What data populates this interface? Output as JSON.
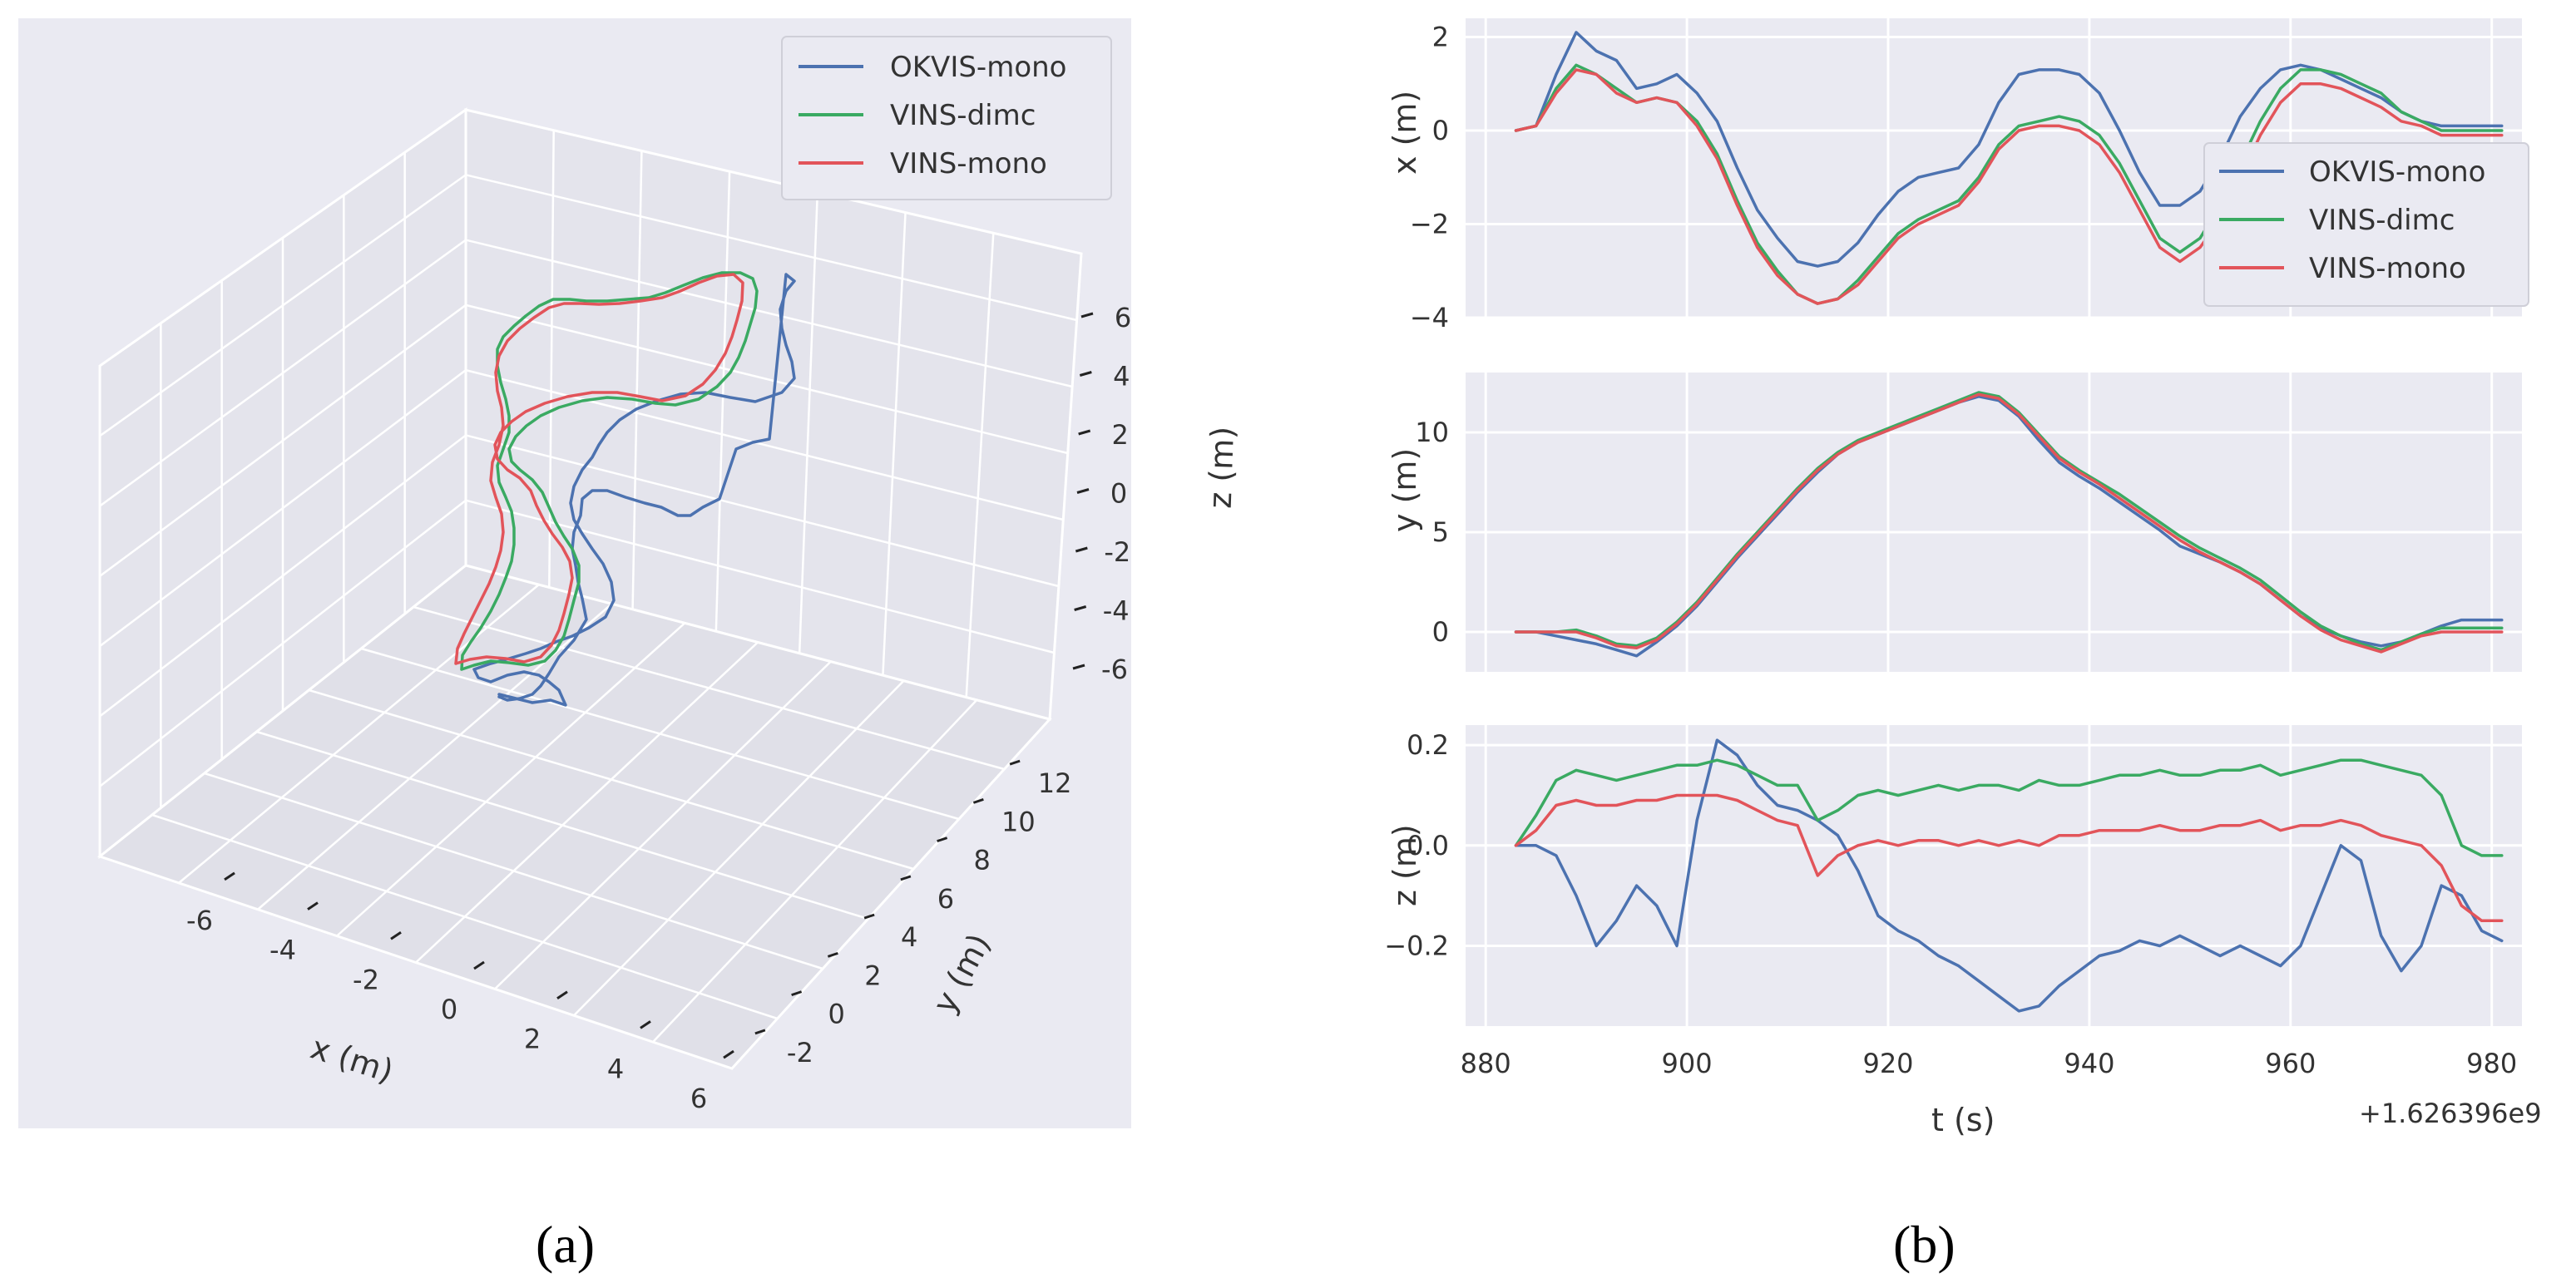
{
  "colors": {
    "okvis": "#4c72b0",
    "vins_dimc": "#3aaa62",
    "vins_mono": "#e2545a",
    "panel_bg": "#eaeaf2",
    "grid": "#ffffff"
  },
  "legend": [
    "OKVIS-mono",
    "VINS-dimc",
    "VINS-mono"
  ],
  "panel_labels": {
    "a": "(a)",
    "b": "(b)"
  },
  "chart_data": [
    {
      "type": "line",
      "subtype": "3d-trajectory",
      "axes": {
        "x": {
          "label": "x (m)",
          "ticks": [
            "-6",
            "-4",
            "-2",
            "0",
            "2",
            "4",
            "6"
          ]
        },
        "y": {
          "label": "y (m)",
          "ticks": [
            "-2",
            "0",
            "2",
            "4",
            "6",
            "8",
            "10",
            "12"
          ]
        },
        "z": {
          "label": "z (m)",
          "ticks": [
            "-6",
            "-4",
            "-2",
            "0",
            "2",
            "4",
            "6"
          ]
        }
      },
      "legend_position": "top-right",
      "grid": true
    },
    {
      "type": "line",
      "subtype": "stacked-timeseries",
      "x_offset_text": "+1.626396e9",
      "xlabel": "t (s)",
      "xlim": [
        878,
        983
      ],
      "xticks": [
        "880",
        "900",
        "920",
        "940",
        "960",
        "980"
      ],
      "legend_position": "right (x panel)",
      "grid": true,
      "panels": [
        {
          "ylabel": "x (m)",
          "ylim": [
            -4,
            2.4
          ],
          "yticks": [
            "2",
            "0",
            "−2",
            "−4"
          ],
          "ytick_values": [
            2,
            0,
            -2,
            -4
          ]
        },
        {
          "ylabel": "y (m)",
          "ylim": [
            -2,
            13
          ],
          "yticks": [
            "10",
            "5",
            "0"
          ],
          "ytick_values": [
            10,
            5,
            0
          ]
        },
        {
          "ylabel": "z (m)",
          "ylim": [
            -0.36,
            0.24
          ],
          "yticks": [
            "0.2",
            "0.0",
            "−0.2"
          ],
          "ytick_values": [
            0.2,
            0.0,
            -0.2
          ]
        }
      ],
      "series": [
        {
          "name": "OKVIS-mono",
          "x": [
            883,
            885,
            887,
            889,
            891,
            893,
            895,
            897,
            899,
            901,
            903,
            905,
            907,
            909,
            911,
            913,
            915,
            917,
            919,
            921,
            923,
            925,
            927,
            929,
            931,
            933,
            935,
            937,
            939,
            941,
            943,
            945,
            947,
            949,
            951,
            953,
            955,
            957,
            959,
            961,
            963,
            965,
            967,
            969,
            971,
            973,
            975,
            977,
            979,
            981
          ],
          "x_m": [
            0.0,
            0.1,
            1.2,
            2.1,
            1.7,
            1.5,
            0.9,
            1.0,
            1.2,
            0.8,
            0.2,
            -0.8,
            -1.7,
            -2.3,
            -2.8,
            -2.9,
            -2.8,
            -2.4,
            -1.8,
            -1.3,
            -1.0,
            -0.9,
            -0.8,
            -0.3,
            0.6,
            1.2,
            1.3,
            1.3,
            1.2,
            0.8,
            0.0,
            -0.9,
            -1.6,
            -1.6,
            -1.3,
            -0.6,
            0.3,
            0.9,
            1.3,
            1.4,
            1.3,
            1.1,
            0.9,
            0.7,
            0.4,
            0.2,
            0.1,
            0.1,
            0.1,
            0.1
          ],
          "y_m": [
            0.0,
            0.0,
            -0.2,
            -0.4,
            -0.6,
            -0.9,
            -1.2,
            -0.5,
            0.3,
            1.3,
            2.5,
            3.7,
            4.8,
            5.9,
            7.0,
            8.0,
            8.9,
            9.5,
            9.9,
            10.3,
            10.7,
            11.1,
            11.5,
            11.8,
            11.6,
            10.8,
            9.6,
            8.5,
            7.8,
            7.2,
            6.5,
            5.8,
            5.1,
            4.3,
            3.9,
            3.5,
            3.0,
            2.4,
            1.6,
            0.8,
            0.2,
            -0.2,
            -0.5,
            -0.7,
            -0.5,
            -0.1,
            0.3,
            0.6,
            0.6,
            0.6
          ],
          "z_m": [
            0.0,
            0.0,
            -0.02,
            -0.1,
            -0.2,
            -0.15,
            -0.08,
            -0.12,
            -0.2,
            0.05,
            0.21,
            0.18,
            0.12,
            0.08,
            0.07,
            0.05,
            0.02,
            -0.05,
            -0.14,
            -0.17,
            -0.19,
            -0.22,
            -0.24,
            -0.27,
            -0.3,
            -0.33,
            -0.32,
            -0.28,
            -0.25,
            -0.22,
            -0.21,
            -0.19,
            -0.2,
            -0.18,
            -0.2,
            -0.22,
            -0.2,
            -0.22,
            -0.24,
            -0.2,
            -0.1,
            0.0,
            -0.03,
            -0.18,
            -0.25,
            -0.2,
            -0.08,
            -0.1,
            -0.17,
            -0.19
          ]
        },
        {
          "name": "VINS-dimc",
          "x": [
            883,
            885,
            887,
            889,
            891,
            893,
            895,
            897,
            899,
            901,
            903,
            905,
            907,
            909,
            911,
            913,
            915,
            917,
            919,
            921,
            923,
            925,
            927,
            929,
            931,
            933,
            935,
            937,
            939,
            941,
            943,
            945,
            947,
            949,
            951,
            953,
            955,
            957,
            959,
            961,
            963,
            965,
            967,
            969,
            971,
            973,
            975,
            977,
            979,
            981
          ],
          "x_m": [
            0.0,
            0.1,
            0.9,
            1.4,
            1.2,
            0.9,
            0.6,
            0.7,
            0.6,
            0.2,
            -0.5,
            -1.5,
            -2.4,
            -3.0,
            -3.5,
            -3.7,
            -3.6,
            -3.2,
            -2.7,
            -2.2,
            -1.9,
            -1.7,
            -1.5,
            -1.0,
            -0.3,
            0.1,
            0.2,
            0.3,
            0.2,
            -0.1,
            -0.7,
            -1.5,
            -2.3,
            -2.6,
            -2.3,
            -1.6,
            -0.7,
            0.2,
            0.9,
            1.3,
            1.3,
            1.2,
            1.0,
            0.8,
            0.4,
            0.2,
            0.0,
            0.0,
            0.0,
            0.0
          ],
          "y_m": [
            0.0,
            0.0,
            0.0,
            0.1,
            -0.2,
            -0.6,
            -0.7,
            -0.3,
            0.5,
            1.5,
            2.7,
            3.9,
            5.0,
            6.1,
            7.2,
            8.2,
            9.0,
            9.6,
            10.0,
            10.4,
            10.8,
            11.2,
            11.6,
            12.0,
            11.8,
            11.0,
            9.9,
            8.8,
            8.1,
            7.5,
            6.9,
            6.2,
            5.5,
            4.8,
            4.2,
            3.7,
            3.2,
            2.6,
            1.8,
            1.0,
            0.3,
            -0.2,
            -0.6,
            -0.9,
            -0.5,
            -0.1,
            0.2,
            0.2,
            0.2,
            0.2
          ],
          "z_m": [
            0.0,
            0.06,
            0.13,
            0.15,
            0.14,
            0.13,
            0.14,
            0.15,
            0.16,
            0.16,
            0.17,
            0.16,
            0.14,
            0.12,
            0.12,
            0.05,
            0.07,
            0.1,
            0.11,
            0.1,
            0.11,
            0.12,
            0.11,
            0.12,
            0.12,
            0.11,
            0.13,
            0.12,
            0.12,
            0.13,
            0.14,
            0.14,
            0.15,
            0.14,
            0.14,
            0.15,
            0.15,
            0.16,
            0.14,
            0.15,
            0.16,
            0.17,
            0.17,
            0.16,
            0.15,
            0.14,
            0.1,
            0.0,
            -0.02,
            -0.02
          ]
        },
        {
          "name": "VINS-mono",
          "x": [
            883,
            885,
            887,
            889,
            891,
            893,
            895,
            897,
            899,
            901,
            903,
            905,
            907,
            909,
            911,
            913,
            915,
            917,
            919,
            921,
            923,
            925,
            927,
            929,
            931,
            933,
            935,
            937,
            939,
            941,
            943,
            945,
            947,
            949,
            951,
            953,
            955,
            957,
            959,
            961,
            963,
            965,
            967,
            969,
            971,
            973,
            975,
            977,
            979,
            981
          ],
          "x_m": [
            0.0,
            0.1,
            0.8,
            1.3,
            1.2,
            0.8,
            0.6,
            0.7,
            0.6,
            0.1,
            -0.6,
            -1.6,
            -2.5,
            -3.1,
            -3.5,
            -3.7,
            -3.6,
            -3.3,
            -2.8,
            -2.3,
            -2.0,
            -1.8,
            -1.6,
            -1.1,
            -0.4,
            0.0,
            0.1,
            0.1,
            0.0,
            -0.3,
            -0.9,
            -1.7,
            -2.5,
            -2.8,
            -2.5,
            -1.9,
            -1.0,
            -0.1,
            0.6,
            1.0,
            1.0,
            0.9,
            0.7,
            0.5,
            0.2,
            0.1,
            -0.1,
            -0.1,
            -0.1,
            -0.1
          ],
          "y_m": [
            0.0,
            0.0,
            0.0,
            0.0,
            -0.3,
            -0.7,
            -0.8,
            -0.4,
            0.4,
            1.4,
            2.6,
            3.8,
            4.9,
            6.0,
            7.1,
            8.1,
            8.9,
            9.5,
            9.9,
            10.3,
            10.7,
            11.1,
            11.5,
            11.9,
            11.7,
            10.9,
            9.8,
            8.7,
            8.0,
            7.4,
            6.7,
            6.0,
            5.3,
            4.6,
            4.0,
            3.5,
            3.0,
            2.4,
            1.6,
            0.8,
            0.1,
            -0.4,
            -0.7,
            -1.0,
            -0.6,
            -0.2,
            0.0,
            0.0,
            0.0,
            0.0
          ],
          "z_m": [
            0.0,
            0.03,
            0.08,
            0.09,
            0.08,
            0.08,
            0.09,
            0.09,
            0.1,
            0.1,
            0.1,
            0.09,
            0.07,
            0.05,
            0.04,
            -0.06,
            -0.02,
            0.0,
            0.01,
            0.0,
            0.01,
            0.01,
            0.0,
            0.01,
            0.0,
            0.01,
            0.0,
            0.02,
            0.02,
            0.03,
            0.03,
            0.03,
            0.04,
            0.03,
            0.03,
            0.04,
            0.04,
            0.05,
            0.03,
            0.04,
            0.04,
            0.05,
            0.04,
            0.02,
            0.01,
            0.0,
            -0.04,
            -0.12,
            -0.15,
            -0.15
          ]
        }
      ]
    }
  ]
}
